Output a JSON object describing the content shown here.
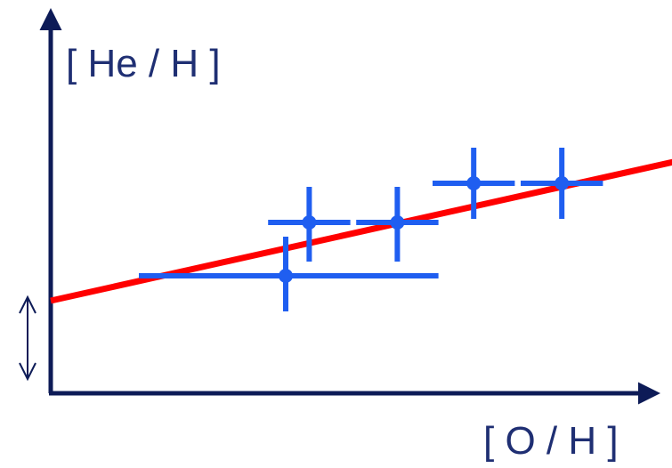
{
  "chart_data": {
    "type": "scatter",
    "title": "",
    "xlabel": "[ O / H ]",
    "ylabel": "[ He / H ]",
    "axis_ticks": "none",
    "grid": false,
    "points": [
      {
        "x": 0.4,
        "y": 0.33,
        "xerr_low": 0.25,
        "xerr_high": 0.26,
        "yerr_low": 0.1,
        "yerr_high": 0.11
      },
      {
        "x": 0.44,
        "y": 0.48,
        "xerr_low": 0.07,
        "xerr_high": 0.07,
        "yerr_low": 0.11,
        "yerr_high": 0.1
      },
      {
        "x": 0.59,
        "y": 0.48,
        "xerr_low": 0.07,
        "xerr_high": 0.07,
        "yerr_low": 0.11,
        "yerr_high": 0.1
      },
      {
        "x": 0.72,
        "y": 0.59,
        "xerr_low": 0.07,
        "xerr_high": 0.07,
        "yerr_low": 0.1,
        "yerr_high": 0.1
      },
      {
        "x": 0.87,
        "y": 0.59,
        "xerr_low": 0.07,
        "xerr_high": 0.07,
        "yerr_low": 0.1,
        "yerr_high": 0.1
      }
    ],
    "fit_line": {
      "x0": 0.0,
      "y0": 0.26,
      "x1": 1.06,
      "y1": 0.65,
      "color": "#ff0000"
    },
    "intercept_marker": {
      "y_low": 0.04,
      "y_high": 0.27
    },
    "colors": {
      "points": "#1f5ef0",
      "axes": "#0d1b57",
      "labels": "#1f2f73",
      "fit": "#ff0000"
    }
  }
}
